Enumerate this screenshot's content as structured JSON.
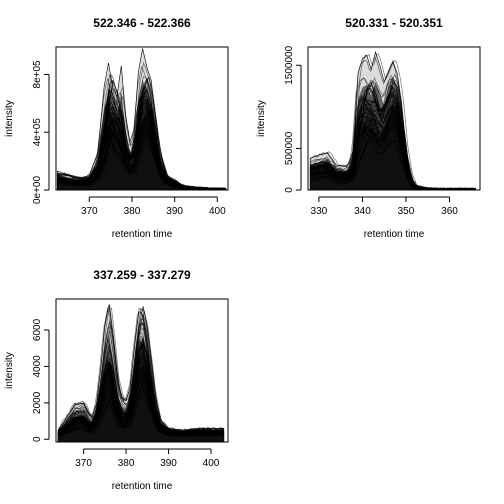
{
  "chart_data": [
    {
      "type": "line",
      "title": "522.346 - 522.366",
      "xlabel": "retention time",
      "ylabel": "intensity",
      "xlim": [
        362.2,
        402.5
      ],
      "ylim": [
        0,
        990000
      ],
      "xticks": [
        370,
        380,
        390,
        400
      ],
      "xtick_labels": [
        "370",
        "380",
        "390",
        "400"
      ],
      "yticks": [
        0,
        400000,
        800000
      ],
      "ytick_labels": [
        "0e+00",
        "4e+05",
        "8e+05"
      ],
      "series": [
        {
          "x": [
            362.5,
            364,
            366,
            368,
            370,
            372,
            373.5,
            374.5,
            375.5,
            376.5,
            377.5,
            378.5,
            379.5,
            380.5,
            381.5,
            382.5,
            383.5,
            384.5,
            385.5,
            386.5,
            388,
            390,
            392,
            395,
            398,
            402
          ],
          "values": [
            110000,
            110000,
            90000,
            80000,
            90000,
            180000,
            420000,
            700000,
            590000,
            480000,
            380000,
            280000,
            230000,
            260000,
            560000,
            700000,
            770000,
            620000,
            420000,
            230000,
            90000,
            40000,
            25000,
            15000,
            8000,
            6000
          ]
        },
        {
          "x": [
            362.5,
            364,
            366,
            368,
            370,
            372,
            373.5,
            374.5,
            375.5,
            376.5,
            377.5,
            378.5,
            379.5,
            380.5,
            381.5,
            382.5,
            383.5,
            384.5,
            385.5,
            386.5,
            388,
            390,
            392,
            395,
            398,
            402
          ],
          "values": [
            130000,
            115000,
            95000,
            85000,
            100000,
            260000,
            720000,
            880000,
            700000,
            650000,
            860000,
            520000,
            330000,
            420000,
            820000,
            980000,
            850000,
            760000,
            500000,
            260000,
            110000,
            60000,
            30000,
            15000,
            8000,
            6000
          ]
        },
        {
          "x": [
            362.5,
            364,
            366,
            368,
            370,
            372,
            373.5,
            374.5,
            375.5,
            376.5,
            377.5,
            378.5,
            379.5,
            380.5,
            381.5,
            382.5,
            383.5,
            384.5,
            385.5,
            386.5,
            388,
            390,
            392,
            395,
            398,
            402
          ],
          "values": [
            80000,
            70000,
            60000,
            60000,
            70000,
            120000,
            300000,
            560000,
            760000,
            680000,
            520000,
            300000,
            200000,
            240000,
            380000,
            620000,
            700000,
            580000,
            380000,
            200000,
            80000,
            70000,
            25000,
            15000,
            8000,
            6000
          ]
        }
      ]
    },
    {
      "type": "line",
      "title": "520.331 - 520.351",
      "xlabel": "retention time",
      "ylabel": "intensity",
      "xlim": [
        327.5,
        367
      ],
      "ylim": [
        0,
        1720000
      ],
      "xticks": [
        330,
        340,
        350,
        360
      ],
      "xtick_labels": [
        "330",
        "340",
        "350",
        "360"
      ],
      "yticks": [
        0,
        500000,
        1500000
      ],
      "ytick_labels": [
        "0",
        "500000",
        "1500000"
      ],
      "series": [
        {
          "x": [
            328,
            330,
            332,
            334,
            336,
            337,
            338,
            339,
            340,
            341,
            342,
            343,
            344,
            345,
            346,
            347,
            348,
            349,
            350,
            351,
            352,
            354,
            357,
            360,
            363,
            366
          ],
          "values": [
            300000,
            330000,
            360000,
            250000,
            220000,
            240000,
            330000,
            900000,
            1100000,
            1000000,
            950000,
            900000,
            800000,
            950000,
            1250000,
            1350000,
            1200000,
            800000,
            400000,
            150000,
            50000,
            20000,
            10000,
            10000,
            10000,
            10000
          ]
        },
        {
          "x": [
            328,
            330,
            332,
            334,
            336,
            337,
            338,
            339,
            340,
            341,
            342,
            343,
            344,
            345,
            346,
            347,
            348,
            349,
            350,
            351,
            352,
            354,
            357,
            360,
            363,
            366
          ],
          "values": [
            380000,
            420000,
            450000,
            300000,
            280000,
            320000,
            500000,
            1400000,
            1580000,
            1620000,
            1450000,
            1660000,
            1500000,
            1300000,
            1420000,
            1550000,
            1400000,
            1050000,
            500000,
            180000,
            60000,
            25000,
            10000,
            10000,
            10000,
            10000
          ]
        },
        {
          "x": [
            328,
            330,
            332,
            334,
            336,
            337,
            338,
            339,
            340,
            341,
            342,
            343,
            344,
            345,
            346,
            347,
            348,
            349,
            350,
            351,
            352,
            354,
            357,
            360,
            363,
            366
          ],
          "values": [
            250000,
            280000,
            300000,
            200000,
            180000,
            200000,
            280000,
            600000,
            900000,
            1200000,
            1300000,
            1100000,
            900000,
            1000000,
            1100000,
            1300000,
            1250000,
            900000,
            450000,
            160000,
            50000,
            20000,
            10000,
            10000,
            10000,
            10000
          ]
        }
      ]
    },
    {
      "type": "line",
      "title": "337.259 - 337.279",
      "xlabel": "retention time",
      "ylabel": "intensity",
      "xlim": [
        363.5,
        404
      ],
      "ylim": [
        -150,
        7700
      ],
      "xticks": [
        370,
        380,
        390,
        400
      ],
      "xtick_labels": [
        "370",
        "380",
        "390",
        "400"
      ],
      "yticks": [
        0,
        2000,
        4000,
        6000
      ],
      "ytick_labels": [
        "0",
        "2000",
        "4000",
        "6000"
      ],
      "series": [
        {
          "x": [
            364,
            366,
            368,
            370,
            371,
            372,
            373,
            374,
            375,
            376,
            377,
            378,
            379,
            380,
            381,
            382,
            383,
            384,
            385,
            386,
            387,
            388,
            390,
            393,
            397,
            403
          ],
          "values": [
            400,
            900,
            1500,
            1600,
            1100,
            900,
            1400,
            2600,
            3900,
            5200,
            3900,
            2300,
            1600,
            1400,
            2100,
            3900,
            6200,
            7300,
            6200,
            4300,
            2300,
            1100,
            600,
            500,
            600,
            600
          ]
        },
        {
          "x": [
            364,
            366,
            368,
            370,
            371,
            372,
            373,
            374,
            375,
            376,
            377,
            378,
            379,
            380,
            381,
            382,
            383,
            384,
            385,
            386,
            387,
            388,
            390,
            393,
            397,
            403
          ],
          "values": [
            500,
            1200,
            1900,
            2000,
            1500,
            1200,
            1900,
            3800,
            6200,
            7400,
            5500,
            3200,
            2300,
            2100,
            2900,
            5100,
            7000,
            6800,
            5000,
            3100,
            1700,
            900,
            500,
            400,
            500,
            400
          ]
        },
        {
          "x": [
            364,
            366,
            368,
            370,
            371,
            372,
            373,
            374,
            375,
            376,
            377,
            378,
            379,
            380,
            381,
            382,
            383,
            384,
            385,
            386,
            387,
            388,
            390,
            393,
            397,
            403
          ],
          "values": [
            300,
            700,
            1100,
            1200,
            900,
            800,
            1200,
            2200,
            3300,
            4100,
            3300,
            2000,
            1400,
            1300,
            1800,
            3000,
            4500,
            5200,
            4600,
            3300,
            1800,
            900,
            500,
            400,
            500,
            500
          ]
        }
      ]
    }
  ]
}
